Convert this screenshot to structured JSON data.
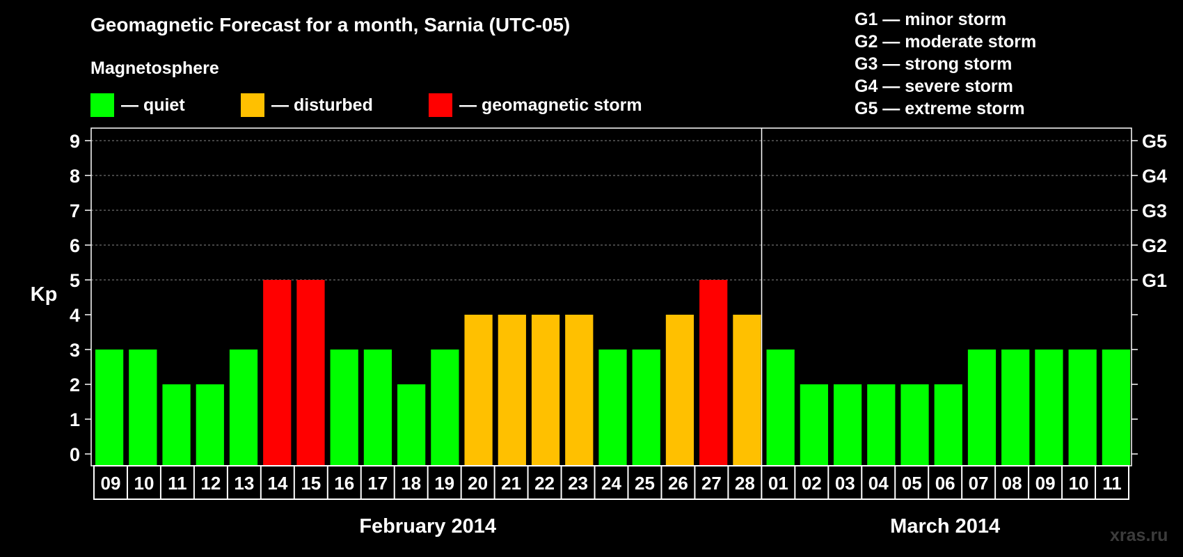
{
  "title": "Geomagnetic Forecast for a month, Sarnia (UTC-05)",
  "legend": {
    "heading": "Magnetosphere",
    "items": [
      {
        "key": "quiet",
        "label": "— quiet",
        "color": "#00ff00"
      },
      {
        "key": "disturbed",
        "label": "— disturbed",
        "color": "#ffc000"
      },
      {
        "key": "storm",
        "label": "— geomagnetic storm",
        "color": "#ff0000"
      }
    ]
  },
  "storm_scale": [
    "G1 — minor storm",
    "G2 — moderate storm",
    "G3 — strong storm",
    "G4 — severe storm",
    "G5 — extreme storm"
  ],
  "watermark": "xras.ru",
  "chart_data": {
    "type": "bar",
    "title": "Geomagnetic Forecast for a month, Sarnia (UTC-05)",
    "ylabel": "Kp",
    "ylim": [
      0,
      9
    ],
    "yticks": [
      0,
      1,
      2,
      3,
      4,
      5,
      6,
      7,
      8,
      9
    ],
    "right_axis_labels": [
      {
        "kp": 5,
        "label": "G1"
      },
      {
        "kp": 6,
        "label": "G2"
      },
      {
        "kp": 7,
        "label": "G3"
      },
      {
        "kp": 8,
        "label": "G4"
      },
      {
        "kp": 9,
        "label": "G5"
      }
    ],
    "months": [
      {
        "label": "February 2014",
        "days": [
          "09",
          "10",
          "11",
          "12",
          "13",
          "14",
          "15",
          "16",
          "17",
          "18",
          "19",
          "20",
          "21",
          "22",
          "23",
          "24",
          "25",
          "26",
          "27",
          "28"
        ]
      },
      {
        "label": "March 2014",
        "days": [
          "01",
          "02",
          "03",
          "04",
          "05",
          "06",
          "07",
          "08",
          "09",
          "10",
          "11"
        ]
      }
    ],
    "values": [
      3,
      3,
      2,
      2,
      3,
      5,
      5,
      3,
      3,
      2,
      3,
      4,
      4,
      4,
      4,
      3,
      3,
      4,
      5,
      4,
      3,
      2,
      2,
      2,
      2,
      2,
      3,
      3,
      3,
      3,
      3
    ],
    "colors": {
      "quiet": "#00ff00",
      "disturbed": "#ffc000",
      "storm": "#ff0000"
    },
    "color_rule": "Kp<=3 quiet, Kp=4 disturbed, Kp>=5 storm"
  }
}
